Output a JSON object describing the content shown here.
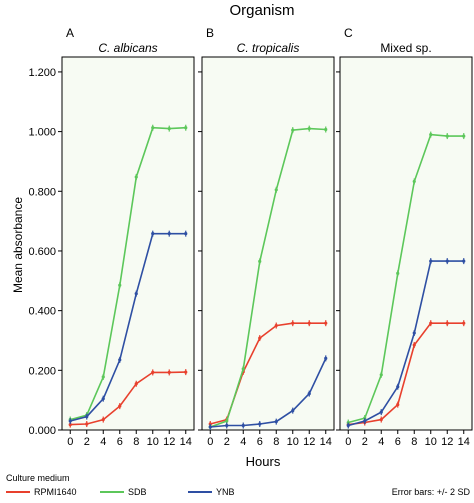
{
  "chart_data": {
    "type": "line",
    "title": "Organism",
    "xlabel": "Hours",
    "ylabel": "Mean absorbance",
    "x_ticks": [
      "0",
      "2",
      "4",
      "6",
      "8",
      "10",
      "12",
      "14"
    ],
    "y_ticks": [
      "0.000",
      "0.200",
      "0.400",
      "0.600",
      "0.800",
      "1.000",
      "1.200"
    ],
    "ylim": [
      0,
      1.25
    ],
    "xlim": [
      -1,
      15
    ],
    "grid": false,
    "legend_title": "Culture medium",
    "error_note": "Error bars: +/- 2 SD",
    "x": [
      0,
      2,
      4,
      6,
      8,
      10,
      12,
      14
    ],
    "panels": [
      {
        "letter": "A",
        "title": "C. albicans",
        "italic": true,
        "series": [
          {
            "name": "RPMI1640",
            "color": "#e8402d",
            "values": [
              0.018,
              0.02,
              0.035,
              0.08,
              0.155,
              0.193,
              0.193,
              0.194
            ]
          },
          {
            "name": "SDB",
            "color": "#5cc75a",
            "values": [
              0.035,
              0.05,
              0.178,
              0.485,
              0.848,
              1.013,
              1.01,
              1.013
            ]
          },
          {
            "name": "YNB",
            "color": "#2e4fa3",
            "values": [
              0.03,
              0.045,
              0.105,
              0.235,
              0.457,
              0.658,
              0.658,
              0.658
            ]
          }
        ]
      },
      {
        "letter": "B",
        "title": "C. tropicalis",
        "italic": true,
        "series": [
          {
            "name": "RPMI1640",
            "color": "#e8402d",
            "values": [
              0.02,
              0.035,
              0.195,
              0.308,
              0.35,
              0.358,
              0.358,
              0.358
            ]
          },
          {
            "name": "SDB",
            "color": "#5cc75a",
            "values": [
              0.01,
              0.03,
              0.205,
              0.565,
              0.805,
              1.005,
              1.01,
              1.007
            ]
          },
          {
            "name": "YNB",
            "color": "#2e4fa3",
            "values": [
              0.01,
              0.015,
              0.015,
              0.02,
              0.028,
              0.065,
              0.122,
              0.24
            ]
          }
        ]
      },
      {
        "letter": "C",
        "title": "Mixed sp.",
        "italic": false,
        "series": [
          {
            "name": "RPMI1640",
            "color": "#e8402d",
            "values": [
              0.018,
              0.025,
              0.035,
              0.085,
              0.285,
              0.358,
              0.358,
              0.358
            ]
          },
          {
            "name": "SDB",
            "color": "#5cc75a",
            "values": [
              0.025,
              0.04,
              0.185,
              0.525,
              0.833,
              0.99,
              0.985,
              0.985
            ]
          },
          {
            "name": "YNB",
            "color": "#2e4fa3",
            "values": [
              0.015,
              0.03,
              0.06,
              0.145,
              0.325,
              0.566,
              0.566,
              0.566
            ]
          }
        ]
      }
    ],
    "legend": [
      {
        "name": "RPMI1640",
        "color": "#e8402d"
      },
      {
        "name": "SDB",
        "color": "#5cc75a"
      },
      {
        "name": "YNB",
        "color": "#2e4fa3"
      }
    ],
    "plot_background": "#f7fbf3"
  }
}
